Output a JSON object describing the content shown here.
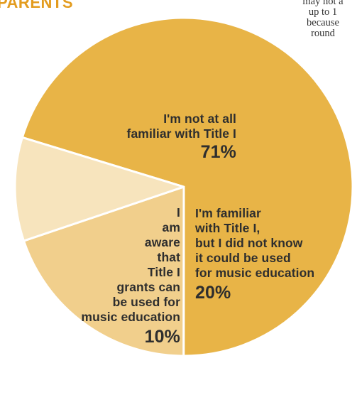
{
  "header": {
    "title": "PARENTS"
  },
  "note": {
    "lines": [
      "may not a",
      "up to 1",
      "because",
      "round"
    ]
  },
  "chart_data": {
    "type": "pie",
    "title": "PARENTS",
    "slices": [
      {
        "label": "I'm not at all familiar with Title I",
        "label_lines": [
          "I'm not at all",
          "familiar with Title I"
        ],
        "value": 71,
        "value_label": "71%",
        "color": "#e8b447"
      },
      {
        "label": "I'm familiar with Title I, but I did not know it could be used for music education",
        "label_lines": [
          "I'm familiar",
          "with Title I,",
          "but I did not know",
          "it could be used",
          "for music education"
        ],
        "value": 20,
        "value_label": "20%",
        "color": "#f1cf8c"
      },
      {
        "label": "I am aware that Title I grants can be used for music education",
        "label_lines": [
          "I",
          "am",
          "aware",
          "that",
          "Title I",
          "grants can",
          "be used for",
          "music education"
        ],
        "value": 10,
        "value_label": "10%",
        "color": "#f7e4bd"
      }
    ]
  }
}
